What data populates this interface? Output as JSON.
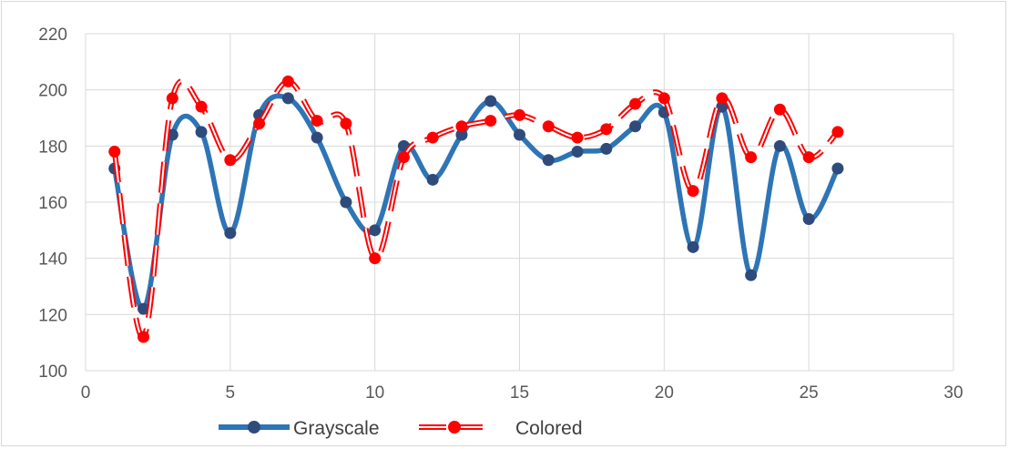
{
  "chart_data": {
    "type": "line",
    "title": "",
    "xlabel": "",
    "ylabel": "",
    "xlim": [
      0,
      30
    ],
    "ylim": [
      100,
      220
    ],
    "x_ticks": [
      0,
      5,
      10,
      15,
      20,
      25,
      30
    ],
    "y_ticks": [
      100,
      120,
      140,
      160,
      180,
      200,
      220
    ],
    "grid": true,
    "legend_position": "bottom",
    "x": [
      1,
      2,
      3,
      4,
      5,
      6,
      7,
      8,
      9,
      10,
      11,
      12,
      13,
      14,
      15,
      16,
      17,
      18,
      19,
      20,
      21,
      22,
      23,
      24,
      25,
      26
    ],
    "series": [
      {
        "name": "Grayscale",
        "color": "#2e75b6",
        "marker_color": "#2f4b7c",
        "style": "smooth-solid",
        "values": [
          172,
          122,
          184,
          185,
          149,
          191,
          197,
          183,
          160,
          150,
          180,
          168,
          184,
          196,
          184,
          175,
          178,
          179,
          187,
          192,
          144,
          194,
          134,
          180,
          154,
          172
        ]
      },
      {
        "name": "Colored",
        "color": "#ff0000",
        "marker_color": "#ff0000",
        "style": "smooth-double-dash",
        "values": [
          178,
          112,
          197,
          194,
          175,
          188,
          203,
          189,
          188,
          140,
          176,
          183,
          187,
          189,
          191,
          187,
          183,
          186,
          195,
          197,
          164,
          197,
          176,
          193,
          176,
          185
        ]
      }
    ]
  }
}
